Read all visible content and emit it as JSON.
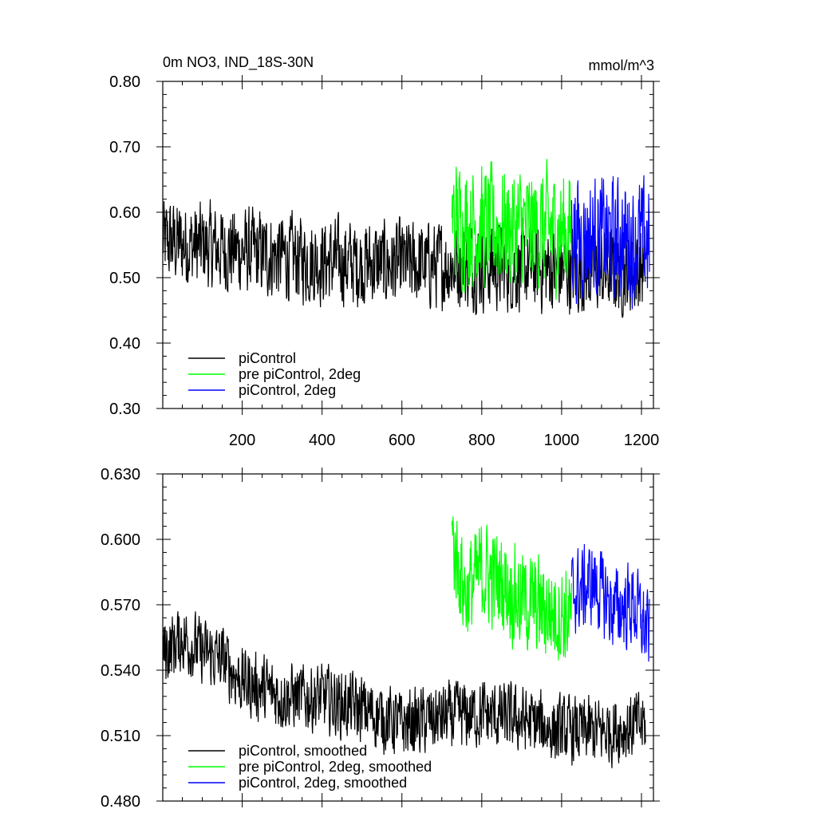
{
  "chart_data": [
    {
      "type": "line",
      "title": "0m NO3, IND_18S-30N",
      "units": "mmol/m^3",
      "xlim": [
        1,
        1230
      ],
      "ylim": [
        0.3,
        0.8
      ],
      "x_ticks": [
        200,
        400,
        600,
        800,
        1000,
        1200
      ],
      "y_ticks": [
        0.3,
        0.4,
        0.5,
        0.6,
        0.7,
        0.8
      ],
      "y_tick_labels": [
        "0.30",
        "0.40",
        "0.50",
        "0.60",
        "0.70",
        "0.80"
      ],
      "legend_position": "bottom-left",
      "grid": false,
      "series": [
        {
          "name": "piControl",
          "color": "#000000",
          "x_range": [
            1,
            1210
          ],
          "noise_amp": 0.085,
          "levels": [
            [
              0,
              0.555
            ],
            [
              100,
              0.548
            ],
            [
              200,
              0.54
            ],
            [
              300,
              0.532
            ],
            [
              400,
              0.525
            ],
            [
              500,
              0.522
            ],
            [
              600,
              0.52
            ],
            [
              700,
              0.52
            ],
            [
              800,
              0.518
            ],
            [
              900,
              0.515
            ],
            [
              1000,
              0.512
            ],
            [
              1100,
              0.51
            ],
            [
              1210,
              0.512
            ]
          ]
        },
        {
          "name": "pre piControl, 2deg",
          "color": "#00ff00",
          "x_range": [
            725,
            1025
          ],
          "noise_amp": 0.12,
          "levels": [
            [
              725,
              0.59
            ],
            [
              800,
              0.578
            ],
            [
              900,
              0.575
            ],
            [
              1025,
              0.572
            ]
          ]
        },
        {
          "name": "piControl, 2deg",
          "color": "#0000ff",
          "x_range": [
            1025,
            1220
          ],
          "noise_amp": 0.12,
          "levels": [
            [
              1025,
              0.565
            ],
            [
              1100,
              0.56
            ],
            [
              1220,
              0.555
            ]
          ]
        }
      ]
    },
    {
      "type": "line",
      "xlim": [
        1,
        1230
      ],
      "ylim": [
        0.48,
        0.63
      ],
      "x_ticks": [
        200,
        400,
        600,
        800,
        1000,
        1200
      ],
      "y_ticks": [
        0.48,
        0.51,
        0.54,
        0.57,
        0.6,
        0.63
      ],
      "y_tick_labels": [
        "0.480",
        "0.510",
        "0.540",
        "0.570",
        "0.600",
        "0.630"
      ],
      "legend_position": "bottom-left",
      "grid": false,
      "series": [
        {
          "name": "piControl, smoothed",
          "color": "#000000",
          "x_range": [
            1,
            1210
          ],
          "noise_amp": 0.02,
          "levels": [
            [
              0,
              0.548
            ],
            [
              50,
              0.555
            ],
            [
              100,
              0.548
            ],
            [
              150,
              0.545
            ],
            [
              200,
              0.535
            ],
            [
              300,
              0.528
            ],
            [
              400,
              0.527
            ],
            [
              500,
              0.522
            ],
            [
              600,
              0.515
            ],
            [
              700,
              0.518
            ],
            [
              800,
              0.52
            ],
            [
              900,
              0.517
            ],
            [
              1000,
              0.512
            ],
            [
              1100,
              0.512
            ],
            [
              1210,
              0.515
            ]
          ]
        },
        {
          "name": "pre piControl, 2deg, smoothed",
          "color": "#00ff00",
          "x_range": [
            725,
            1025
          ],
          "noise_amp": 0.03,
          "levels": [
            [
              725,
              0.6
            ],
            [
              760,
              0.575
            ],
            [
              800,
              0.585
            ],
            [
              850,
              0.58
            ],
            [
              900,
              0.572
            ],
            [
              950,
              0.568
            ],
            [
              1025,
              0.565
            ]
          ]
        },
        {
          "name": "piControl, 2deg, smoothed",
          "color": "#0000ff",
          "x_range": [
            1025,
            1220
          ],
          "noise_amp": 0.025,
          "levels": [
            [
              1025,
              0.575
            ],
            [
              1080,
              0.58
            ],
            [
              1130,
              0.568
            ],
            [
              1180,
              0.57
            ],
            [
              1220,
              0.555
            ]
          ]
        }
      ]
    }
  ]
}
